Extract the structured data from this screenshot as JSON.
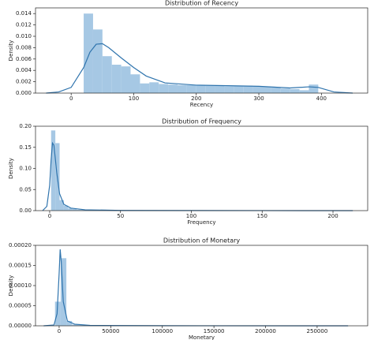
{
  "chart_data": [
    {
      "type": "histogram",
      "title": "Distribution of Recency",
      "xlabel": "Recency",
      "ylabel": "Density",
      "bins": [
        20,
        35,
        50,
        65,
        80,
        95,
        110,
        125,
        140,
        155,
        170,
        185,
        200,
        215,
        230,
        245,
        260,
        275,
        290,
        305,
        320,
        335,
        350,
        365,
        380,
        395
      ],
      "values": [
        0.014,
        0.0112,
        0.0065,
        0.005,
        0.0047,
        0.0033,
        0.0017,
        0.0019,
        0.0016,
        0.0015,
        0.0014,
        0.0014,
        0.0014,
        0.0013,
        0.0013,
        0.0012,
        0.0013,
        0.0013,
        0.0012,
        0.0011,
        0.001,
        0.0008,
        0.0007,
        0.0005,
        0.0015
      ],
      "color": "#a6c8e4",
      "kde": {
        "color": "#2f74ad",
        "x": [
          -40,
          -20,
          0,
          20,
          30,
          40,
          50,
          60,
          80,
          100,
          120,
          150,
          200,
          250,
          300,
          350,
          380,
          395,
          420,
          450
        ],
        "values": [
          0,
          0.0002,
          0.001,
          0.0045,
          0.0072,
          0.0086,
          0.0087,
          0.008,
          0.0062,
          0.0045,
          0.003,
          0.0018,
          0.0014,
          0.0013,
          0.0012,
          0.0009,
          0.0011,
          0.001,
          0.0002,
          0
        ]
      },
      "xlim": [
        -57,
        474
      ],
      "ylim": [
        0,
        0.015
      ],
      "xticks": [
        0,
        100,
        200,
        300,
        400
      ],
      "yticks": [
        {
          "value": 0,
          "label": "0.000"
        },
        {
          "value": 0.002,
          "label": "0.002"
        },
        {
          "value": 0.004,
          "label": "0.004"
        },
        {
          "value": 0.006,
          "label": "0.006"
        },
        {
          "value": 0.008,
          "label": "0.008"
        },
        {
          "value": 0.01,
          "label": "0.010"
        },
        {
          "value": 0.012,
          "label": "0.012"
        },
        {
          "value": 0.014,
          "label": "0.014"
        }
      ]
    },
    {
      "type": "histogram",
      "title": "Distribution of Frequency",
      "xlabel": "Frequency",
      "ylabel": "Density",
      "bins": [
        1,
        4,
        7,
        10,
        13,
        16,
        19,
        40,
        80,
        120,
        160,
        214
      ],
      "values": [
        0.19,
        0.16,
        0.025,
        0.012,
        0.006,
        0.004,
        0.002,
        0.0005,
        0.0002,
        0.0001,
        5e-05
      ],
      "color": "#a6c8e4",
      "kde": {
        "color": "#2f74ad",
        "x": [
          -5,
          -2,
          0,
          1,
          2,
          3,
          5,
          7,
          10,
          15,
          25,
          50,
          100,
          150,
          214
        ],
        "values": [
          0,
          0.01,
          0.06,
          0.12,
          0.16,
          0.155,
          0.09,
          0.04,
          0.015,
          0.006,
          0.002,
          0.0005,
          0.0002,
          0.0001,
          0
        ]
      },
      "xlim": [
        -10,
        224.5
      ],
      "ylim": [
        0,
        0.2
      ],
      "xticks": [
        0,
        50,
        100,
        150,
        200
      ],
      "yticks": [
        {
          "value": 0,
          "label": "0.00"
        },
        {
          "value": 0.05,
          "label": "0.05"
        },
        {
          "value": 0.1,
          "label": "0.10"
        },
        {
          "value": 0.15,
          "label": "0.15"
        },
        {
          "value": 0.2,
          "label": "0.20"
        }
      ]
    },
    {
      "type": "histogram",
      "title": "Distribution of Monetary",
      "xlabel": "Monetary",
      "ylabel": "Density",
      "bins": [
        -4000,
        1500,
        7000,
        12500,
        25000,
        60000,
        150000,
        280000
      ],
      "values": [
        6e-05,
        0.000168,
        1.2e-05,
        3e-06,
        8e-07,
        2e-07,
        5e-08
      ],
      "color": "#a6c8e4",
      "kde": {
        "color": "#2f74ad",
        "x": [
          -15000,
          -5000,
          -2000,
          0,
          1000,
          2000,
          4000,
          8000,
          15000,
          30000,
          100000,
          280000
        ],
        "values": [
          0,
          2e-06,
          3e-05,
          0.00013,
          0.00019,
          0.00016,
          6e-05,
          1.2e-05,
          4e-06,
          1e-06,
          2e-07,
          0
        ]
      },
      "xlim": [
        -22900,
        299000
      ],
      "ylim": [
        0,
        0.0002
      ],
      "xticks": [
        0,
        50000,
        100000,
        150000,
        200000,
        250000
      ],
      "yticks": [
        {
          "value": 0,
          "label": "0.00000"
        },
        {
          "value": 5e-05,
          "label": "0.00005"
        },
        {
          "value": 0.0001,
          "label": "0.00010"
        },
        {
          "value": 0.00015,
          "label": "0.00015"
        },
        {
          "value": 0.0002,
          "label": "0.00020"
        }
      ]
    }
  ]
}
